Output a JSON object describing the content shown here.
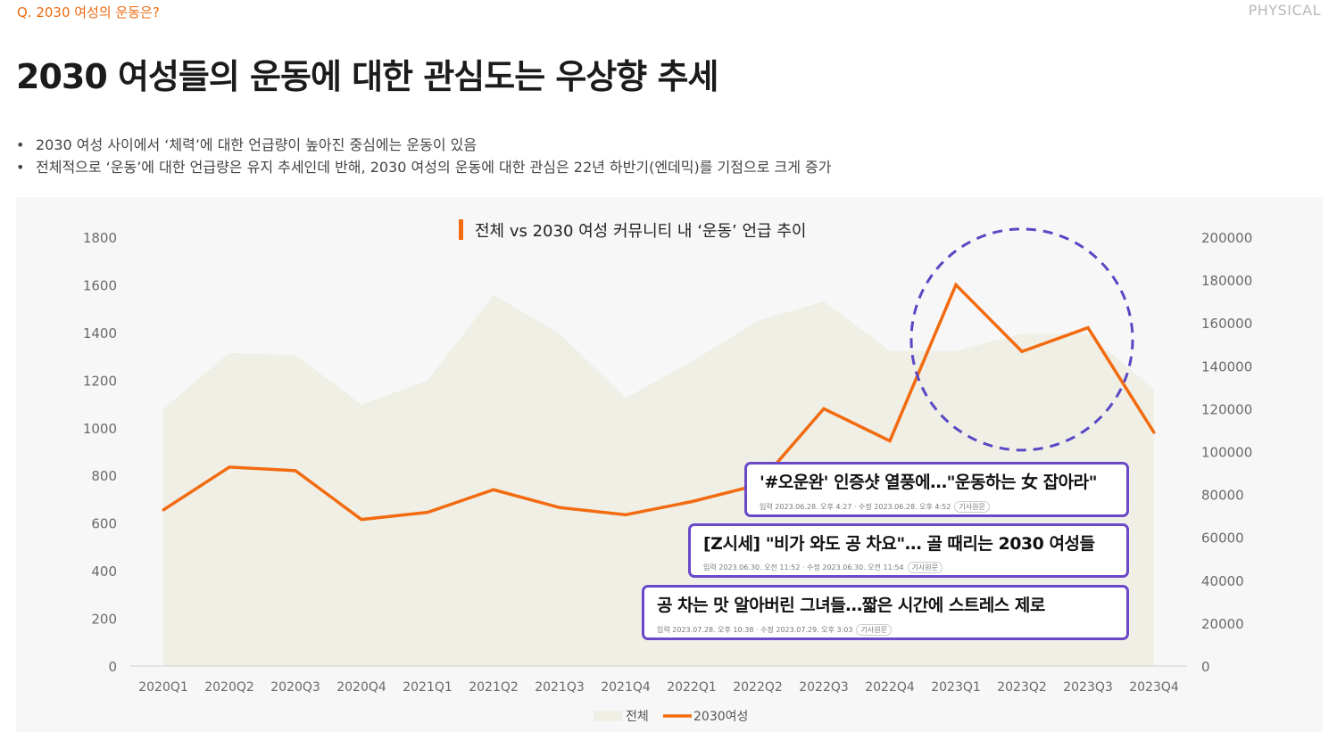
{
  "header": {
    "question": "Q. 2030 여성의 운동은?",
    "brand": "PHYSICAL",
    "title": "2030 여성들의 운동에 대한 관심도는 우상향 추세"
  },
  "bullets": [
    "2030 여성 사이에서 ‘체력’에 대한 언급량이 높아진 중심에는 운동이 있음",
    "전체적으로 ‘운동’에 대한 언급량은 유지 추세인데 반해, 2030 여성의 운동에 대한 관심은 22년 하반기(엔데믹)를 기점으로 크게 증가"
  ],
  "bullet_marker": "•",
  "colors": {
    "accent": "#f26b10",
    "area": "#efefe6",
    "highlight": "#5b46c4",
    "callout_border": "#6a48c8"
  },
  "chart_data": {
    "type": "line+area",
    "title": "전체 vs 2030 여성 커뮤니티 내 ‘운동’ 언급 추이",
    "categories": [
      "2020Q1",
      "2020Q2",
      "2020Q3",
      "2020Q4",
      "2021Q1",
      "2021Q2",
      "2021Q3",
      "2021Q4",
      "2022Q1",
      "2022Q2",
      "2022Q3",
      "2022Q4",
      "2023Q1",
      "2023Q2",
      "2023Q3",
      "2023Q4"
    ],
    "series": [
      {
        "name": "전체",
        "kind": "area",
        "axis": "right",
        "values": [
          120000,
          146000,
          145000,
          122000,
          133000,
          173000,
          155000,
          125000,
          142000,
          161000,
          170000,
          147000,
          147000,
          155000,
          155000,
          129000
        ]
      },
      {
        "name": "2030여성",
        "kind": "line",
        "axis": "left",
        "values": [
          655,
          835,
          820,
          615,
          645,
          740,
          665,
          635,
          690,
          760,
          1080,
          945,
          1600,
          1320,
          1420,
          980
        ]
      }
    ],
    "left_axis": {
      "min": 0,
      "max": 1800,
      "ticks": [
        "0",
        "200",
        "400",
        "600",
        "800",
        "1000",
        "1200",
        "1400",
        "1600",
        "1800"
      ]
    },
    "right_axis": {
      "min": 0,
      "max": 200000,
      "ticks": [
        "0",
        "20000",
        "40000",
        "60000",
        "80000",
        "100000",
        "120000",
        "140000",
        "160000",
        "180000",
        "200000"
      ]
    },
    "legend": [
      {
        "label": "전체"
      },
      {
        "label": "2030여성"
      }
    ],
    "legend_position": "bottom-center",
    "highlight": {
      "categories": [
        "2023Q1",
        "2023Q2",
        "2023Q3"
      ],
      "style": "dashed-circle"
    }
  },
  "news_callouts": [
    {
      "headline": "'#오운완' 인증샷 열풍에…\"운동하는 女 잡아라\"",
      "meta": "입력 2023.06.28. 오후 4:27 · 수정 2023.06.28. 오후 4:52",
      "tag": "기사원문"
    },
    {
      "headline": "[Z시세] \"비가 와도 공 차요\"… 골 때리는 2030 여성들",
      "meta": "입력 2023.06.30. 오전 11:52 · 수정 2023.06.30. 오전 11:54",
      "tag": "기사원문"
    },
    {
      "headline": "공 차는 맛 알아버린 그녀들…짧은 시간에 스트레스 제로",
      "meta": "입력 2023.07.28. 오후 10:38 · 수정 2023.07.29. 오후 3:03",
      "tag": "기사원문"
    }
  ]
}
